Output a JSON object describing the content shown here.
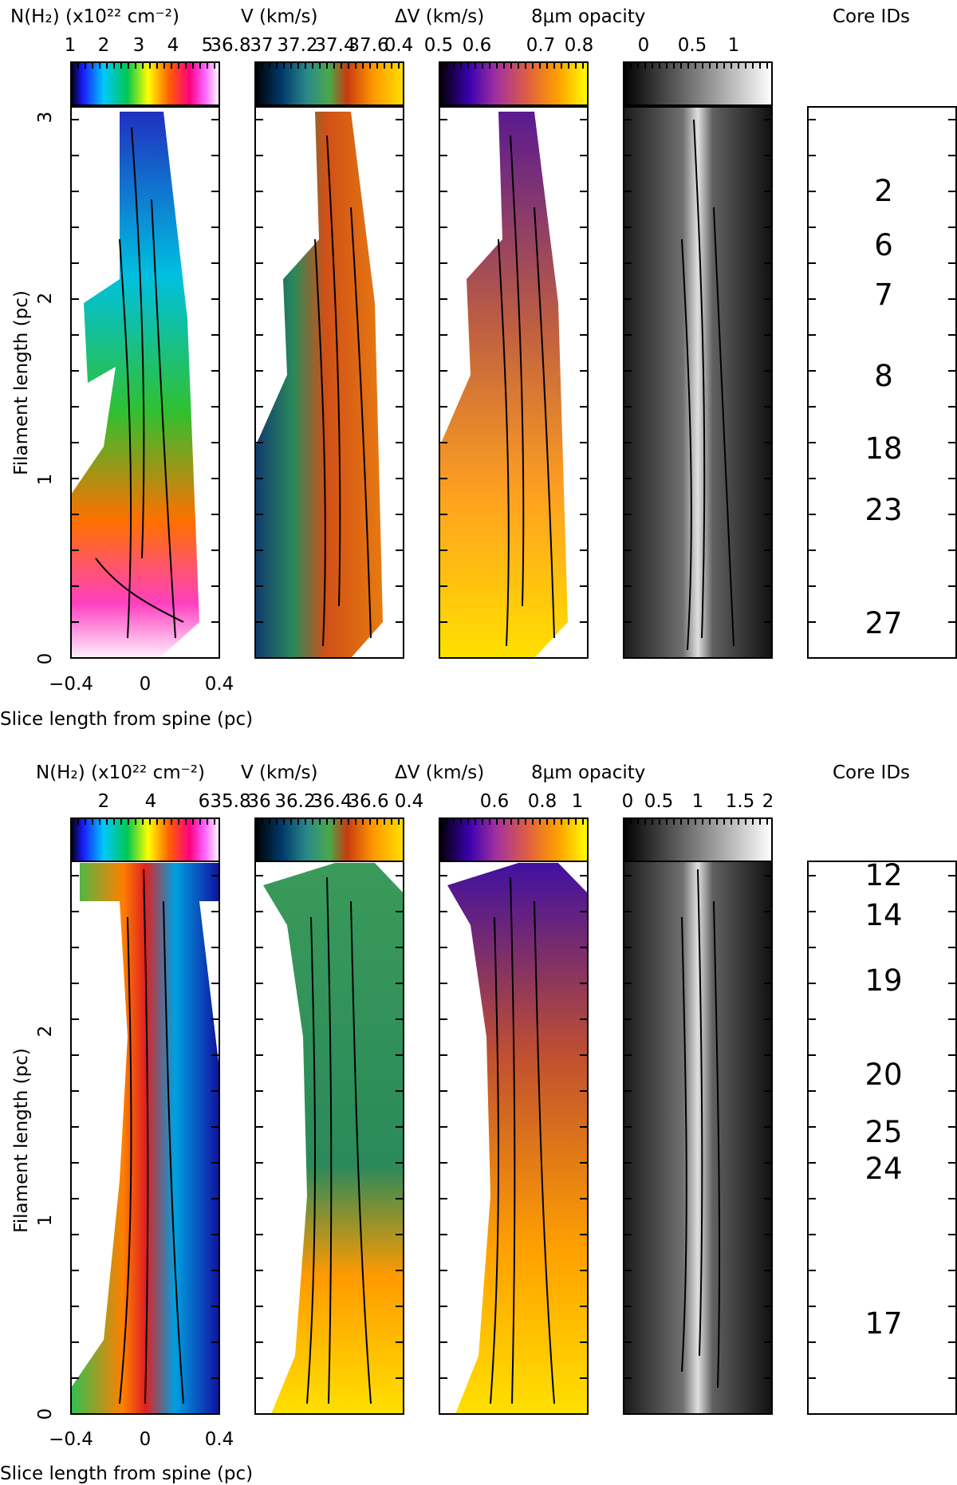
{
  "figure": {
    "panels": [
      {
        "id": "top",
        "titles": {
          "nh2": "N(H₂) (x10²² cm⁻²)",
          "v": "V (km/s)",
          "dv": "ΔV (km/s)",
          "opacity": "8μm opacity",
          "cores": "Core IDs"
        },
        "colorbar_ticks": {
          "nh2": [
            "1",
            "2",
            "3",
            "4",
            "5"
          ],
          "v": [
            "36.8",
            "37",
            "37.2",
            "37.4",
            "37.6"
          ],
          "dv": [
            "0.4",
            "0.5",
            "0.6",
            "0.7",
            "0.8"
          ],
          "opacity": [
            "0",
            "0.5",
            "1"
          ]
        },
        "y_axis_label": "Filament length (pc)",
        "y_ticks": [
          "0",
          "1",
          "2",
          "3"
        ],
        "x_axis_label": "Slice length from spine (pc)",
        "x_ticks": [
          "−0.4",
          "0",
          "0.4"
        ],
        "core_ids": [
          "2",
          "6",
          "7",
          "8",
          "18",
          "23",
          "27"
        ]
      },
      {
        "id": "bottom",
        "titles": {
          "nh2": "N(H₂) (x10²² cm⁻²)",
          "v": "V (km/s)",
          "dv": "ΔV (km/s)",
          "opacity": "8μm opacity",
          "cores": "Core IDs"
        },
        "colorbar_ticks": {
          "nh2": [
            "2",
            "4",
            "6"
          ],
          "v": [
            "35.8",
            "36",
            "36.2",
            "36.4",
            "36.6"
          ],
          "dv": [
            "0.4",
            "0.6",
            "0.8",
            "1"
          ],
          "opacity": [
            "0",
            "0.5",
            "1",
            "1.5",
            "2"
          ]
        },
        "y_axis_label": "Filament length (pc)",
        "y_ticks": [
          "0",
          "1",
          "2"
        ],
        "x_axis_label": "Slice length from spine (pc)",
        "x_ticks": [
          "−0.4",
          "0",
          "0.4"
        ],
        "core_ids": [
          "12",
          "14",
          "19",
          "20",
          "25",
          "24",
          "17"
        ]
      }
    ]
  }
}
